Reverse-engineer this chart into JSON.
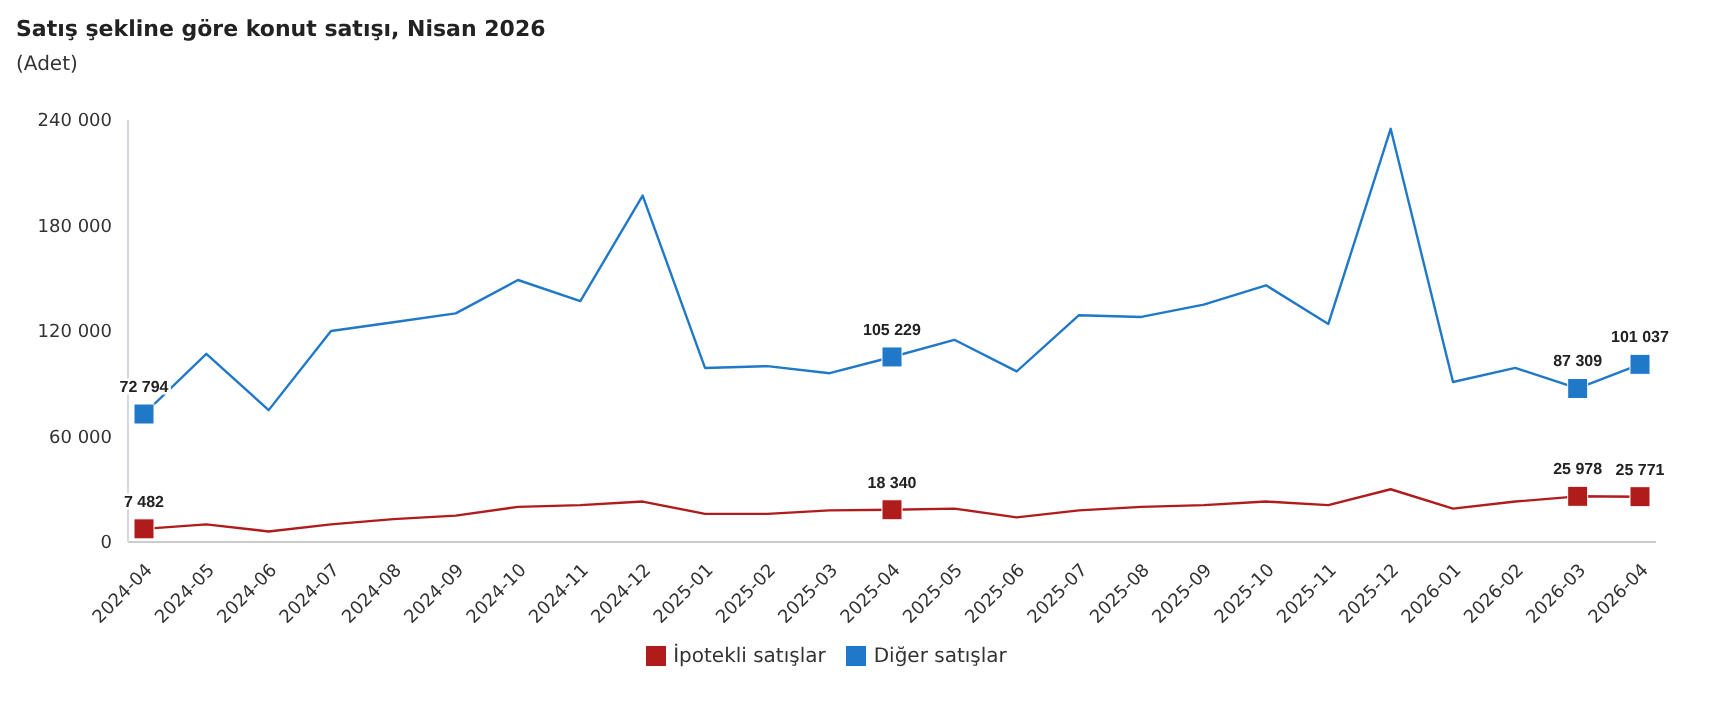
{
  "chart_data": {
    "type": "line",
    "title": "Satış şekline göre konut satışı, Nisan 2026",
    "subtitle": "(Adet)",
    "categories": [
      "2024-04",
      "2024-05",
      "2024-06",
      "2024-07",
      "2024-08",
      "2024-09",
      "2024-10",
      "2024-11",
      "2024-12",
      "2025-01",
      "2025-02",
      "2025-03",
      "2025-04",
      "2025-05",
      "2025-06",
      "2025-07",
      "2025-08",
      "2025-09",
      "2025-10",
      "2025-11",
      "2025-12",
      "2026-01",
      "2026-02",
      "2026-03",
      "2026-04"
    ],
    "series": [
      {
        "name": "İpotekli satışlar",
        "color": "#b01c1c",
        "values": [
          7482,
          10000,
          6000,
          10000,
          13000,
          15000,
          20000,
          21000,
          23000,
          16000,
          16000,
          18000,
          18340,
          19000,
          14000,
          18000,
          20000,
          21000,
          23000,
          21000,
          30000,
          19000,
          23000,
          25978,
          25771
        ]
      },
      {
        "name": "Diğer satışlar",
        "color": "#1f78c8",
        "values": [
          72794,
          107000,
          75000,
          120000,
          125000,
          130000,
          149000,
          137000,
          197000,
          99000,
          100000,
          96000,
          105229,
          115000,
          97000,
          129000,
          128000,
          135000,
          146000,
          124000,
          235000,
          91000,
          99000,
          87309,
          101037
        ]
      },
      {
        "type": "scatter",
        "color": "#b01c1c",
        "marker": "square",
        "values": [
          7482,
          null,
          null,
          null,
          null,
          null,
          null,
          null,
          null,
          null,
          null,
          null,
          18340,
          null,
          null,
          null,
          null,
          null,
          null,
          null,
          null,
          null,
          null,
          25978,
          25771
        ],
        "value_labels": [
          "7 482",
          null,
          null,
          null,
          null,
          null,
          null,
          null,
          null,
          null,
          null,
          null,
          "18 340",
          null,
          null,
          null,
          null,
          null,
          null,
          null,
          null,
          null,
          null,
          "25 978",
          "25 771"
        ]
      },
      {
        "type": "scatter",
        "color": "#1f78c8",
        "marker": "square",
        "values": [
          72794,
          null,
          null,
          null,
          null,
          null,
          null,
          null,
          null,
          null,
          null,
          null,
          105229,
          null,
          null,
          null,
          null,
          null,
          null,
          null,
          null,
          null,
          null,
          87309,
          101037
        ],
        "value_labels": [
          "72 794",
          null,
          null,
          null,
          null,
          null,
          null,
          null,
          null,
          null,
          null,
          null,
          "105 229",
          null,
          null,
          null,
          null,
          null,
          null,
          null,
          null,
          null,
          null,
          "87 309",
          "101 037"
        ]
      }
    ],
    "ylim": [
      0,
      240000
    ],
    "yticks": [
      {
        "value": 0,
        "label": "0"
      },
      {
        "value": 60000,
        "label": "60 000"
      },
      {
        "value": 120000,
        "label": "120 000"
      },
      {
        "value": 180000,
        "label": "180 000"
      },
      {
        "value": 240000,
        "label": "240 000"
      }
    ],
    "grid": false,
    "legend": "bottom",
    "line_style": "solid"
  }
}
